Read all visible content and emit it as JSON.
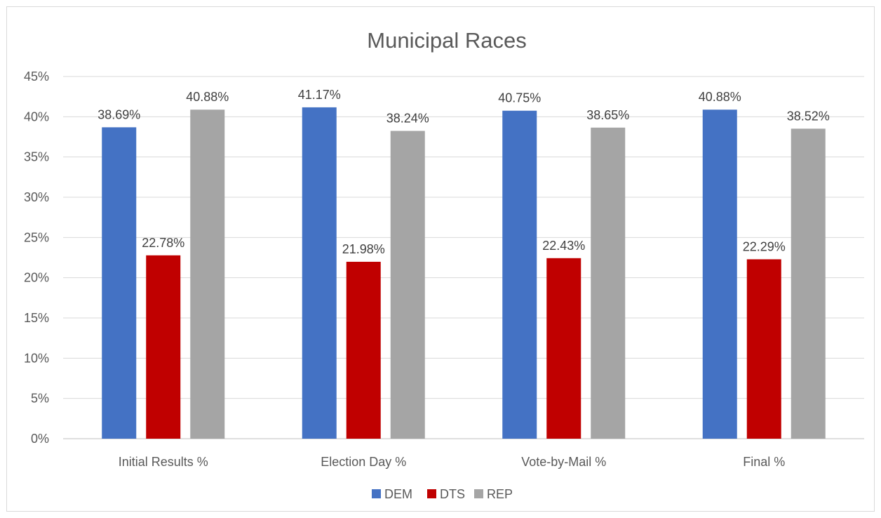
{
  "chart_data": {
    "type": "bar",
    "title": "Municipal Races",
    "categories": [
      "Initial Results %",
      "Election Day %",
      "Vote-by-Mail %",
      "Final %"
    ],
    "series": [
      {
        "name": "DEM",
        "color": "#4472c4",
        "values": [
          38.69,
          41.17,
          40.75,
          40.88
        ],
        "labels": [
          "38.69%",
          "41.17%",
          "40.75%",
          "40.88%"
        ]
      },
      {
        "name": "DTS",
        "color": "#c00000",
        "values": [
          22.78,
          21.98,
          22.43,
          22.29
        ],
        "labels": [
          "22.78%",
          "21.98%",
          "22.43%",
          "22.29%"
        ]
      },
      {
        "name": "REP",
        "color": "#a5a5a5",
        "values": [
          40.88,
          38.24,
          38.65,
          38.52
        ],
        "labels": [
          "40.88%",
          "38.24%",
          "38.65%",
          "38.52%"
        ]
      }
    ],
    "ylim": [
      0,
      45
    ],
    "yticks": [
      {
        "value": 0,
        "label": "0%"
      },
      {
        "value": 5,
        "label": "5%"
      },
      {
        "value": 10,
        "label": "10%"
      },
      {
        "value": 15,
        "label": "15%"
      },
      {
        "value": 20,
        "label": "20%"
      },
      {
        "value": 25,
        "label": "25%"
      },
      {
        "value": 30,
        "label": "30%"
      },
      {
        "value": 35,
        "label": "35%"
      },
      {
        "value": 40,
        "label": "40%"
      },
      {
        "value": 45,
        "label": "45%"
      }
    ],
    "xlabel": "",
    "ylabel": "",
    "grid": true,
    "legend_position": "bottom"
  }
}
